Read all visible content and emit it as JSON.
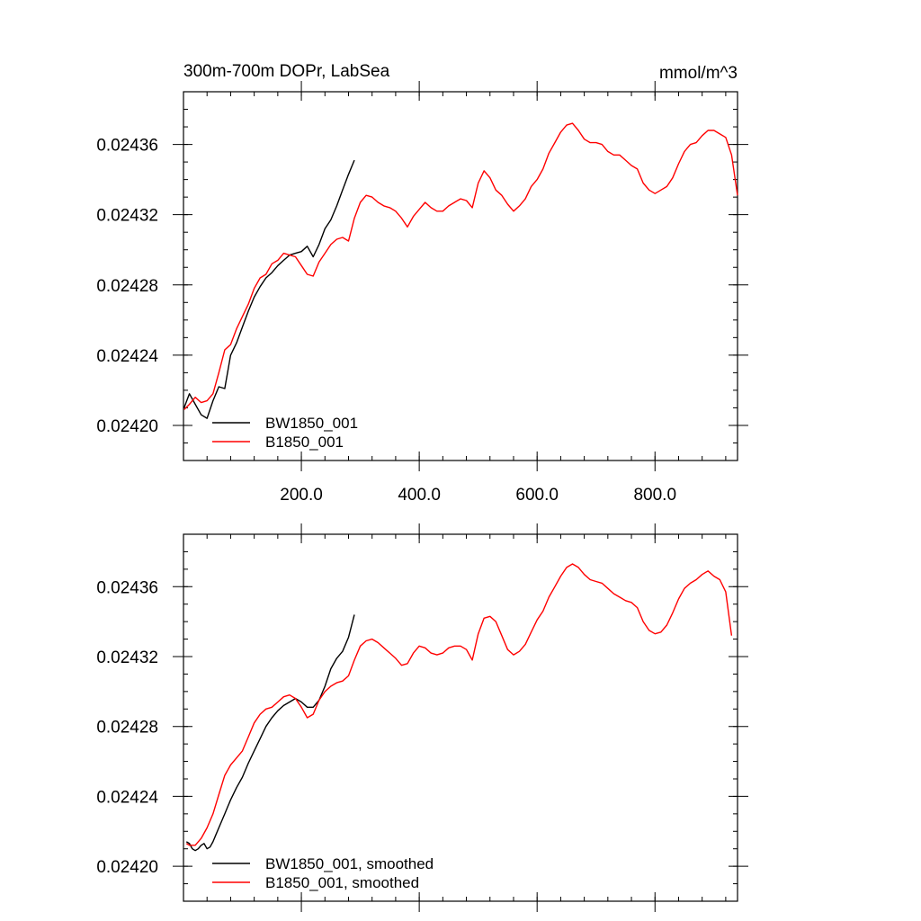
{
  "chart_data": [
    {
      "type": "line",
      "title": "300m-700m DOPr, LabSea",
      "units": "mmol/m^3",
      "xlim": [
        0,
        940
      ],
      "ylim": [
        0.02418,
        0.02439
      ],
      "x_ticks": [
        200,
        400,
        600,
        800
      ],
      "x_tick_labels": [
        "200.0",
        "400.0",
        "600.0",
        "800.0"
      ],
      "y_ticks": [
        0.0242,
        0.02424,
        0.02428,
        0.02432,
        0.02436
      ],
      "y_tick_labels": [
        "0.02420",
        "0.02424",
        "0.02428",
        "0.02432",
        "0.02436"
      ],
      "legend_position": "bottom-left",
      "series": [
        {
          "name": "BW1850_001",
          "color": "#000000",
          "x": [
            1,
            10,
            20,
            30,
            40,
            50,
            60,
            70,
            80,
            90,
            100,
            110,
            120,
            130,
            140,
            150,
            160,
            170,
            180,
            190,
            200,
            210,
            220,
            230,
            240,
            250,
            260,
            270,
            280,
            290
          ],
          "y": [
            0.02421,
            0.024218,
            0.024212,
            0.024206,
            0.024204,
            0.024214,
            0.024222,
            0.024221,
            0.02424,
            0.024247,
            0.024256,
            0.024265,
            0.024273,
            0.024279,
            0.024284,
            0.024287,
            0.024291,
            0.024294,
            0.024297,
            0.024298,
            0.024299,
            0.024302,
            0.024296,
            0.024303,
            0.024312,
            0.024317,
            0.024325,
            0.024334,
            0.024343,
            0.024351
          ]
        },
        {
          "name": "B1850_001",
          "color": "#ff0000",
          "x": [
            1,
            10,
            20,
            30,
            40,
            50,
            60,
            70,
            80,
            90,
            100,
            110,
            120,
            130,
            140,
            150,
            160,
            170,
            180,
            190,
            200,
            210,
            220,
            230,
            240,
            250,
            260,
            270,
            280,
            290,
            300,
            310,
            320,
            330,
            340,
            350,
            360,
            370,
            380,
            390,
            400,
            410,
            420,
            430,
            440,
            450,
            460,
            470,
            480,
            490,
            500,
            510,
            520,
            530,
            540,
            550,
            560,
            570,
            580,
            590,
            600,
            610,
            620,
            630,
            640,
            650,
            660,
            670,
            680,
            690,
            700,
            710,
            720,
            730,
            740,
            750,
            760,
            770,
            780,
            790,
            800,
            810,
            820,
            830,
            840,
            850,
            860,
            870,
            880,
            890,
            900,
            910,
            920,
            930,
            940
          ],
          "y": [
            0.024209,
            0.024212,
            0.024216,
            0.024213,
            0.024214,
            0.024218,
            0.02423,
            0.024243,
            0.024246,
            0.024255,
            0.024262,
            0.024269,
            0.024278,
            0.024284,
            0.024286,
            0.024292,
            0.024294,
            0.024298,
            0.024297,
            0.024296,
            0.024291,
            0.024286,
            0.024285,
            0.024293,
            0.024298,
            0.024303,
            0.024306,
            0.024307,
            0.024305,
            0.024318,
            0.024327,
            0.024331,
            0.02433,
            0.024327,
            0.024325,
            0.024324,
            0.024322,
            0.024318,
            0.024313,
            0.024319,
            0.024323,
            0.024327,
            0.024324,
            0.024322,
            0.024322,
            0.024325,
            0.024327,
            0.024329,
            0.024328,
            0.024324,
            0.024338,
            0.024345,
            0.024341,
            0.024334,
            0.024331,
            0.024326,
            0.024322,
            0.024325,
            0.024329,
            0.024336,
            0.02434,
            0.024346,
            0.024355,
            0.024361,
            0.024367,
            0.024371,
            0.024372,
            0.024368,
            0.024363,
            0.024361,
            0.024361,
            0.02436,
            0.024356,
            0.024354,
            0.024354,
            0.024351,
            0.024348,
            0.024346,
            0.024338,
            0.024334,
            0.024332,
            0.024334,
            0.024336,
            0.024341,
            0.024349,
            0.024356,
            0.02436,
            0.024361,
            0.024365,
            0.024368,
            0.024368,
            0.024366,
            0.024364,
            0.024354,
            0.024331
          ]
        }
      ]
    },
    {
      "type": "line",
      "xlim": [
        0,
        940
      ],
      "ylim": [
        0.02418,
        0.02439
      ],
      "x_ticks": [
        200,
        400,
        600,
        800
      ],
      "y_ticks": [
        0.0242,
        0.02424,
        0.02428,
        0.02432,
        0.02436
      ],
      "y_tick_labels": [
        "0.02420",
        "0.02424",
        "0.02428",
        "0.02432",
        "0.02436"
      ],
      "legend_position": "bottom-left",
      "series": [
        {
          "name": "BW1850_001, smoothed",
          "color": "#000000",
          "x": [
            5,
            10,
            15,
            20,
            25,
            30,
            35,
            40,
            45,
            50,
            55,
            60,
            65,
            70,
            75,
            80,
            90,
            100,
            110,
            120,
            130,
            140,
            150,
            160,
            170,
            180,
            190,
            200,
            210,
            220,
            230,
            240,
            250,
            260,
            270,
            280,
            290
          ],
          "y": [
            0.024214,
            0.024213,
            0.02421,
            0.024209,
            0.02421,
            0.024212,
            0.024213,
            0.02421,
            0.024211,
            0.024214,
            0.024218,
            0.024222,
            0.024226,
            0.02423,
            0.024234,
            0.024238,
            0.024245,
            0.024251,
            0.024259,
            0.024266,
            0.024273,
            0.02428,
            0.024285,
            0.024289,
            0.024292,
            0.024294,
            0.024296,
            0.024294,
            0.024291,
            0.024291,
            0.024295,
            0.024303,
            0.024313,
            0.024319,
            0.024323,
            0.024331,
            0.024344
          ]
        },
        {
          "name": "B1850_001, smoothed",
          "color": "#ff0000",
          "x": [
            5,
            10,
            20,
            30,
            40,
            50,
            60,
            70,
            80,
            90,
            100,
            110,
            120,
            130,
            140,
            150,
            160,
            170,
            180,
            190,
            200,
            210,
            220,
            230,
            240,
            250,
            260,
            270,
            280,
            290,
            300,
            310,
            320,
            330,
            340,
            350,
            360,
            370,
            380,
            390,
            400,
            410,
            420,
            430,
            440,
            450,
            460,
            470,
            480,
            490,
            500,
            510,
            520,
            530,
            540,
            550,
            560,
            570,
            580,
            590,
            600,
            610,
            620,
            630,
            640,
            650,
            660,
            670,
            680,
            690,
            700,
            710,
            720,
            730,
            740,
            750,
            760,
            770,
            780,
            790,
            800,
            810,
            820,
            830,
            840,
            850,
            860,
            870,
            880,
            890,
            900,
            910,
            920,
            930
          ],
          "y": [
            0.024213,
            0.024212,
            0.024212,
            0.024216,
            0.024222,
            0.02423,
            0.024241,
            0.024252,
            0.024258,
            0.024262,
            0.024266,
            0.024274,
            0.024282,
            0.024287,
            0.02429,
            0.024291,
            0.024294,
            0.024297,
            0.024298,
            0.024296,
            0.024291,
            0.024285,
            0.024287,
            0.024295,
            0.0243,
            0.024303,
            0.024305,
            0.024306,
            0.024309,
            0.024318,
            0.024326,
            0.024329,
            0.02433,
            0.024328,
            0.024325,
            0.024322,
            0.024319,
            0.024315,
            0.024316,
            0.024322,
            0.024326,
            0.024325,
            0.024322,
            0.024321,
            0.024322,
            0.024325,
            0.024326,
            0.024326,
            0.024324,
            0.024318,
            0.024333,
            0.024342,
            0.024343,
            0.02434,
            0.024332,
            0.024324,
            0.024321,
            0.024323,
            0.024327,
            0.024334,
            0.024341,
            0.024346,
            0.024354,
            0.02436,
            0.024366,
            0.024371,
            0.024373,
            0.024371,
            0.024367,
            0.024364,
            0.024363,
            0.024362,
            0.024359,
            0.024356,
            0.024354,
            0.024352,
            0.024351,
            0.024348,
            0.02434,
            0.024335,
            0.024333,
            0.024334,
            0.024338,
            0.024345,
            0.024353,
            0.024359,
            0.024362,
            0.024364,
            0.024367,
            0.024369,
            0.024366,
            0.024364,
            0.024357,
            0.024332
          ]
        }
      ]
    }
  ]
}
